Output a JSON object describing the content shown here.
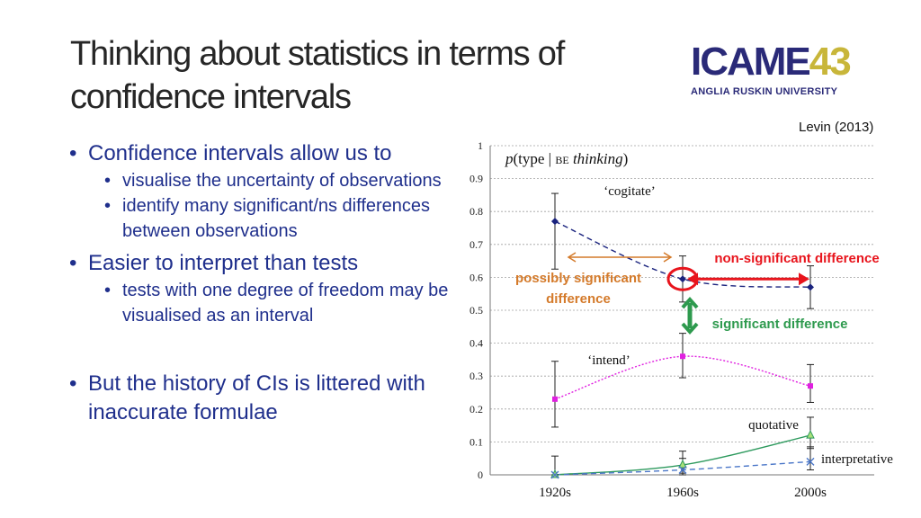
{
  "slide": {
    "title": "Thinking about statistics in terms of confidence intervals",
    "citation": "Levin (2013)"
  },
  "logo": {
    "main_a": "ICAME",
    "main_b": "43",
    "sub": "ANGLIA RUSKIN UNIVERSITY"
  },
  "bullets": {
    "b1": "Confidence intervals allow us to",
    "b1_1": "visualise the uncertainty of observations",
    "b1_2": "identify many significant/ns differences between observations",
    "b2": "Easier to interpret than tests",
    "b2_1": "tests with one degree of freedom may be visualised as an interval",
    "b3": "But the history of CIs is littered with inaccurate formulae"
  },
  "chart_data": {
    "type": "line",
    "title": "p(type | BE thinking)",
    "categories": [
      "1920s",
      "1960s",
      "2000s"
    ],
    "ylim": [
      0,
      1
    ],
    "yticks": [
      "0",
      "0.1",
      "0.2",
      "0.3",
      "0.4",
      "0.5",
      "0.6",
      "0.7",
      "0.8",
      "0.9",
      "1"
    ],
    "grid": true,
    "series": [
      {
        "name": "'cogitate'",
        "color": "#1a237e",
        "marker": "diamond",
        "line": "dashed",
        "values": [
          0.77,
          0.595,
          0.57
        ],
        "lower": [
          0.625,
          0.525,
          0.505
        ],
        "upper": [
          0.855,
          0.665,
          0.635
        ]
      },
      {
        "name": "'intend'",
        "color": "#e020e0",
        "marker": "square",
        "line": "dotted",
        "values": [
          0.23,
          0.36,
          0.27
        ],
        "lower": [
          0.145,
          0.295,
          0.22
        ],
        "upper": [
          0.345,
          0.43,
          0.335
        ]
      },
      {
        "name": "quotative",
        "color": "#2e9a5e",
        "marker": "triangle",
        "line": "solid",
        "values": [
          0.0,
          0.03,
          0.12
        ],
        "lower": [
          0.0,
          0.005,
          0.08
        ],
        "upper": [
          0.057,
          0.072,
          0.175
        ]
      },
      {
        "name": "interpretative",
        "color": "#4a76c8",
        "marker": "x",
        "line": "dashed",
        "values": [
          0.0,
          0.015,
          0.04
        ],
        "lower": [
          0.0,
          0.0,
          0.015
        ],
        "upper": [
          0.0,
          0.05,
          0.085
        ]
      }
    ],
    "annotations": {
      "nonsig": "non-significant difference",
      "possibly_a": "possibly significant",
      "possibly_b": "difference",
      "sig": "significant difference"
    },
    "colors": {
      "red": "#e8141c",
      "orange": "#d47a2a",
      "green": "#2e9a4e",
      "axis": "#777777",
      "grid": "#a0a0a0"
    }
  }
}
